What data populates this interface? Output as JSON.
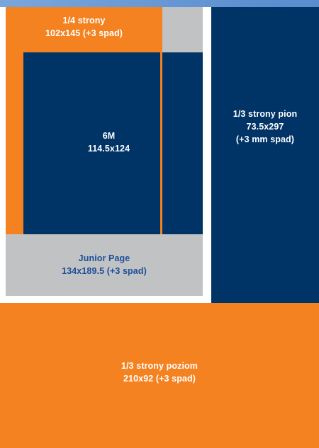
{
  "colors": {
    "orange": "#f58220",
    "navy": "#003366",
    "gray": "#c1c2c4",
    "white": "#ffffff",
    "blue_text": "#1d4f98"
  },
  "blocks": {
    "quarter_page": {
      "line1": "1/4 strony",
      "line2": "102x145 (+3 spad)"
    },
    "six_m": {
      "line1": "6M",
      "line2": "114.5x124"
    },
    "third_vertical": {
      "line1": "1/3 strony pion",
      "line2": "73.5x297",
      "line3": "(+3 mm spad)"
    },
    "junior_page": {
      "line1": "Junior Page",
      "line2": "134x189.5 (+3 spad)"
    },
    "third_horizontal": {
      "line1": "1/3 strony poziom",
      "line2": "210x92 (+3 spad)"
    }
  }
}
